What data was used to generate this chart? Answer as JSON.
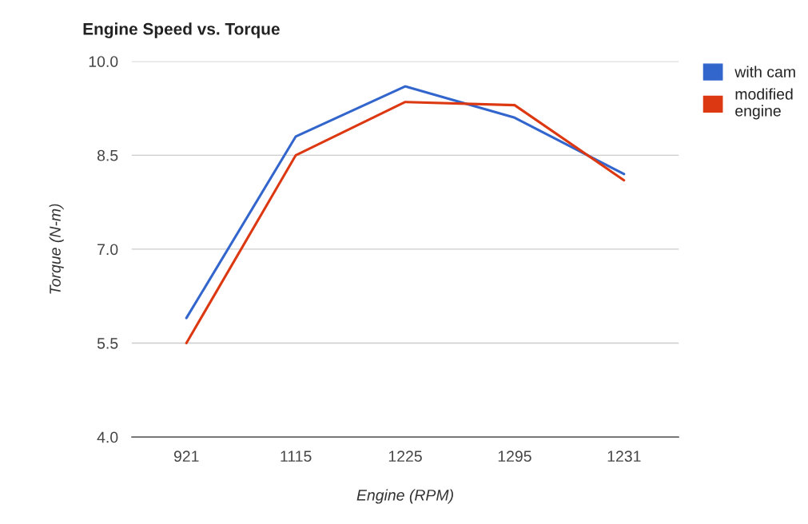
{
  "chart_data": {
    "type": "line",
    "title": "Engine Speed vs. Torque",
    "xlabel": "Engine (RPM)",
    "ylabel": "Torque (N-m)",
    "categories": [
      "921",
      "1115",
      "1225",
      "1295",
      "1231"
    ],
    "series": [
      {
        "name": "with cam",
        "color": "#3366cc",
        "values": [
          5.9,
          8.8,
          9.6,
          9.1,
          8.2
        ]
      },
      {
        "name": "modified engine",
        "color": "#dc3912",
        "values": [
          5.5,
          8.5,
          9.35,
          9.3,
          8.1
        ]
      }
    ],
    "ylim": [
      4.0,
      10.0
    ],
    "yticks": [
      {
        "value": 4.0,
        "label": "4.0"
      },
      {
        "value": 5.5,
        "label": "5.5"
      },
      {
        "value": 7.0,
        "label": "7.0"
      },
      {
        "value": 8.5,
        "label": "8.5"
      },
      {
        "value": 10.0,
        "label": "10.0"
      }
    ],
    "grid": "y",
    "legend": "top right",
    "marker": "none",
    "line_style": "solid"
  }
}
